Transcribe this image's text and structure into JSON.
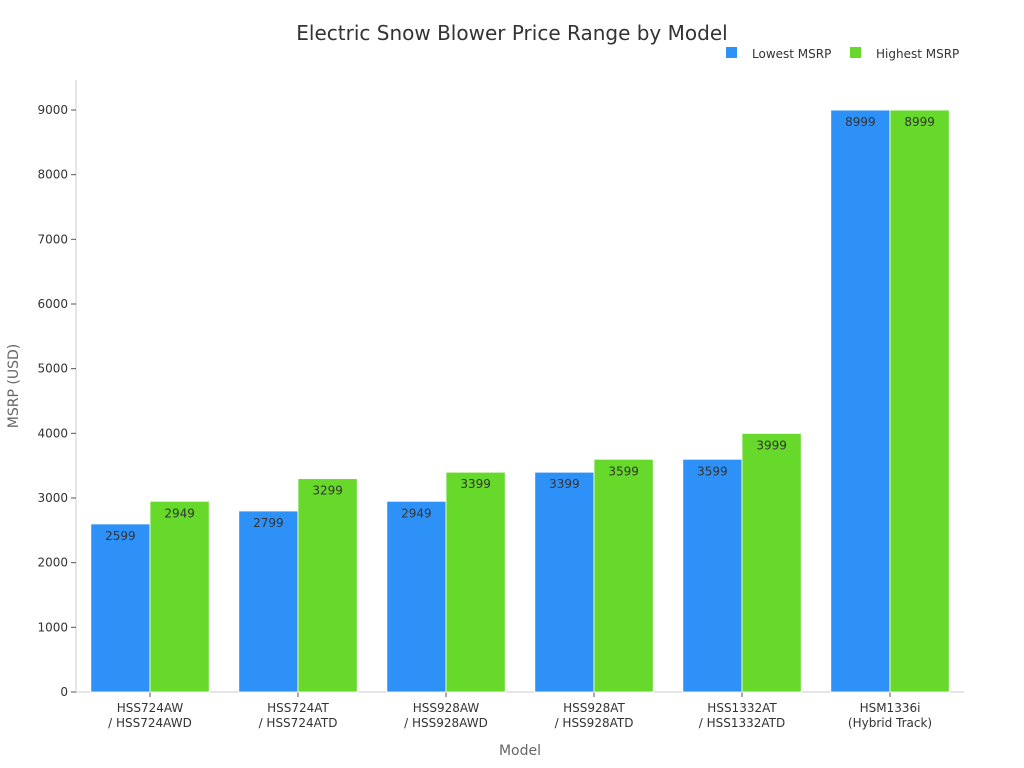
{
  "chart_data": {
    "type": "bar",
    "title": "Electric Snow Blower Price Range by Model",
    "xlabel": "Model",
    "ylabel": "MSRP (USD)",
    "ylim": [
      0,
      9450
    ],
    "yticks": [
      0,
      1000,
      2000,
      3000,
      4000,
      5000,
      6000,
      7000,
      8000,
      9000
    ],
    "grid": false,
    "legend_position": "top-right",
    "categories": [
      [
        "HSS724AW",
        "/ HSS724AWD"
      ],
      [
        "HSS724AT",
        "/ HSS724ATD"
      ],
      [
        "HSS928AW",
        "/ HSS928AWD"
      ],
      [
        "HSS928AT",
        "/ HSS928ATD"
      ],
      [
        "HSS1332AT",
        "/ HSS1332ATD"
      ],
      [
        "HSM1336i",
        "(Hybrid Track)"
      ]
    ],
    "series": [
      {
        "name": "Lowest MSRP",
        "color": "#2E91F8",
        "values": [
          2599,
          2799,
          2949,
          3399,
          3599,
          8999
        ]
      },
      {
        "name": "Highest MSRP",
        "color": "#66D92A",
        "values": [
          2949,
          3299,
          3399,
          3599,
          3999,
          8999
        ]
      }
    ]
  }
}
